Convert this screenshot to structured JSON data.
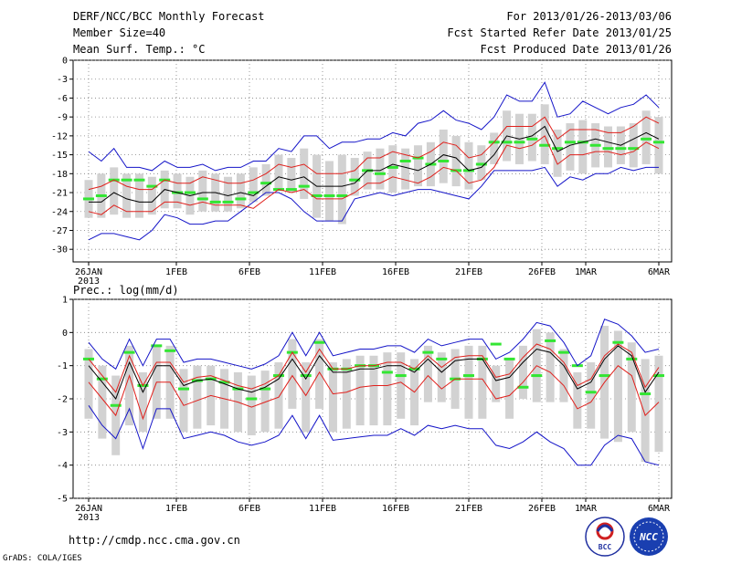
{
  "header": {
    "title": "DERF/NCC/BCC Monthly Forecast",
    "member_size": "Member Size=40",
    "forecast_period": "For 2013/01/26-2013/03/06",
    "started_refer": "Fcst Started Refer Date 2013/01/25",
    "produced": "Fcst Produced Date 2013/01/26"
  },
  "footer": {
    "url": "http://cmdp.ncc.cma.gov.cn",
    "grads": "GrADS: COLA/IGES",
    "logo_bcc_text": "BCC",
    "logo_ncc_text": "NCC"
  },
  "colors": {
    "ensemble_mean": "#000000",
    "inner_band": "#e0201c",
    "outer_band": "#1414c8",
    "box": "#d2d2d2",
    "climatology_marker": "#33e633"
  },
  "chart_data": [
    {
      "type": "line",
      "title": "Mean Surf. Temp.: °C",
      "ylim": [
        -32,
        0
      ],
      "yticks": [
        0,
        -3,
        -6,
        -9,
        -12,
        -15,
        -18,
        -21,
        -24,
        -27,
        -30
      ],
      "xtick_labels": [
        "26JAN",
        "1FEB",
        "6FEB",
        "11FEB",
        "16FEB",
        "21FEB",
        "26FEB",
        "1MAR",
        "6MAR"
      ],
      "xtick_days": [
        0,
        6,
        11,
        16,
        21,
        26,
        31,
        34,
        39
      ],
      "year_label": "2013",
      "series": [
        {
          "name": "ensemble mean",
          "values": [
            -22.5,
            -22.5,
            -21.0,
            -22.0,
            -22.5,
            -22.5,
            -20.5,
            -21.0,
            -21.5,
            -21.0,
            -21.0,
            -21.5,
            -21.0,
            -21.5,
            -20.0,
            -18.5,
            -19.0,
            -18.5,
            -20.0,
            -20.0,
            -20.0,
            -19.5,
            -17.5,
            -17.5,
            -16.5,
            -17.0,
            -17.5,
            -16.5,
            -15.0,
            -15.5,
            -17.5,
            -17.0,
            -15.0,
            -12.0,
            -12.5,
            -12.0,
            -10.5,
            -14.5,
            -13.5,
            -13.0,
            -12.5,
            -13.0,
            -13.5,
            -12.5,
            -11.5,
            -12.5
          ]
        },
        {
          "name": "upper inner",
          "values": [
            -20.5,
            -20.0,
            -19.0,
            -20.0,
            -20.5,
            -20.5,
            -19.0,
            -19.5,
            -19.5,
            -18.5,
            -19.0,
            -19.5,
            -19.5,
            -19.0,
            -18.0,
            -16.5,
            -17.0,
            -16.5,
            -18.0,
            -18.0,
            -18.0,
            -17.5,
            -15.5,
            -15.5,
            -14.5,
            -15.0,
            -15.5,
            -14.5,
            -13.0,
            -13.5,
            -15.5,
            -15.0,
            -13.0,
            -10.5,
            -10.5,
            -10.5,
            -9.0,
            -12.5,
            -11.0,
            -11.0,
            -11.0,
            -11.5,
            -11.5,
            -10.5,
            -9.0,
            -10.0
          ]
        },
        {
          "name": "lower inner",
          "values": [
            -24.0,
            -24.5,
            -23.0,
            -24.0,
            -24.0,
            -24.0,
            -22.5,
            -22.5,
            -23.0,
            -22.5,
            -23.0,
            -23.0,
            -23.0,
            -23.5,
            -22.0,
            -20.5,
            -21.0,
            -20.5,
            -22.0,
            -22.0,
            -22.0,
            -21.0,
            -19.5,
            -19.5,
            -18.5,
            -19.0,
            -19.5,
            -18.5,
            -17.0,
            -17.5,
            -19.5,
            -19.0,
            -17.0,
            -13.5,
            -14.0,
            -13.5,
            -12.0,
            -16.5,
            -15.0,
            -15.0,
            -14.5,
            -14.5,
            -15.0,
            -14.5,
            -13.0,
            -14.0
          ]
        },
        {
          "name": "upper outer",
          "values": [
            -14.5,
            -16.0,
            -14.0,
            -17.0,
            -17.0,
            -17.5,
            -16.0,
            -17.0,
            -17.0,
            -16.5,
            -17.5,
            -17.0,
            -17.0,
            -16.0,
            -16.0,
            -14.0,
            -14.5,
            -12.0,
            -12.0,
            -14.0,
            -13.0,
            -13.0,
            -12.5,
            -12.5,
            -11.5,
            -12.0,
            -10.0,
            -9.5,
            -8.0,
            -9.5,
            -10.0,
            -11.0,
            -9.0,
            -5.5,
            -6.5,
            -6.5,
            -3.5,
            -9.0,
            -8.5,
            -6.5,
            -7.5,
            -8.5,
            -7.5,
            -7.0,
            -5.5,
            -7.5
          ]
        },
        {
          "name": "lower outer",
          "values": [
            -28.5,
            -27.5,
            -27.5,
            -28.0,
            -28.5,
            -27.0,
            -24.5,
            -25.0,
            -26.0,
            -26.0,
            -25.5,
            -25.5,
            -24.0,
            -22.5,
            -21.0,
            -21.0,
            -22.0,
            -24.0,
            -25.5,
            -25.5,
            -25.5,
            -22.0,
            -21.5,
            -21.0,
            -21.5,
            -21.0,
            -20.5,
            -20.5,
            -21.0,
            -21.5,
            -22.0,
            -20.0,
            -17.5,
            -17.5,
            -17.5,
            -17.5,
            -17.0,
            -20.0,
            -18.5,
            -19.0,
            -18.0,
            -18.0,
            -17.0,
            -17.5,
            -17.0,
            -17.0
          ]
        },
        {
          "name": "climatology",
          "values": [
            -22.0,
            -21.5,
            -19.0,
            -19.0,
            -19.0,
            -20.0,
            -19.0,
            -21.0,
            -21.0,
            -22.0,
            -22.5,
            -22.5,
            -22.0,
            -21.0,
            -19.5,
            -20.5,
            -20.5,
            -20.0,
            -21.5,
            -21.5,
            -21.5,
            -19.0,
            -17.5,
            -18.0,
            -17.0,
            -16.0,
            -15.5,
            -16.5,
            -16.0,
            -17.5,
            -17.5,
            -16.5,
            -13.0,
            -13.0,
            -13.0,
            -12.5,
            -13.5,
            -14.0,
            -13.0,
            -13.0,
            -13.5,
            -14.0,
            -14.0,
            -14.0,
            -12.5,
            -13.0
          ]
        },
        {
          "name": "box top",
          "values": [
            -19.0,
            -18.0,
            -17.0,
            -18.0,
            -18.0,
            -18.5,
            -17.5,
            -18.0,
            -18.5,
            -17.5,
            -18.0,
            -18.5,
            -18.0,
            -17.0,
            -16.5,
            -15.0,
            -15.5,
            -14.0,
            -15.0,
            -16.0,
            -15.0,
            -15.5,
            -14.5,
            -14.0,
            -13.5,
            -14.0,
            -13.5,
            -13.0,
            -11.0,
            -12.0,
            -13.0,
            -13.5,
            -11.5,
            -8.0,
            -8.5,
            -8.5,
            -7.0,
            -11.0,
            -10.0,
            -9.5,
            -10.0,
            -10.5,
            -10.5,
            -10.0,
            -8.0,
            -9.0
          ]
        },
        {
          "name": "box bottom",
          "values": [
            -25.0,
            -25.0,
            -24.5,
            -25.0,
            -25.0,
            -24.5,
            -23.5,
            -23.5,
            -24.5,
            -24.0,
            -24.0,
            -24.0,
            -23.5,
            -22.5,
            -21.5,
            -20.5,
            -21.0,
            -22.0,
            -25.0,
            -25.5,
            -26.0,
            -21.5,
            -20.5,
            -20.5,
            -21.0,
            -20.5,
            -20.0,
            -20.0,
            -19.5,
            -20.0,
            -20.5,
            -19.0,
            -16.5,
            -16.0,
            -16.5,
            -16.0,
            -16.5,
            -18.5,
            -17.5,
            -18.0,
            -17.0,
            -17.0,
            -16.5,
            -17.0,
            -16.5,
            -18.0
          ]
        }
      ]
    },
    {
      "type": "line",
      "title": "Prec.: log(mm/d)",
      "ylim": [
        -5,
        1
      ],
      "yticks": [
        1,
        0,
        -1,
        -2,
        -3,
        -4,
        -5
      ],
      "xtick_labels": [
        "26JAN",
        "1FEB",
        "6FEB",
        "11FEB",
        "16FEB",
        "21FEB",
        "26FEB",
        "1MAR",
        "6MAR"
      ],
      "xtick_days": [
        0,
        6,
        11,
        16,
        21,
        26,
        31,
        34,
        39
      ],
      "year_label": "2013",
      "series": [
        {
          "name": "ensemble mean",
          "values": [
            -1.0,
            -1.5,
            -2.0,
            -0.9,
            -1.8,
            -1.0,
            -1.0,
            -1.6,
            -1.45,
            -1.4,
            -1.55,
            -1.7,
            -1.8,
            -1.65,
            -1.4,
            -0.8,
            -1.4,
            -0.7,
            -1.2,
            -1.2,
            -1.1,
            -1.1,
            -1.0,
            -1.0,
            -1.2,
            -0.8,
            -1.2,
            -0.85,
            -0.8,
            -0.8,
            -1.45,
            -1.35,
            -0.9,
            -0.5,
            -0.6,
            -1.0,
            -1.7,
            -1.5,
            -0.8,
            -0.4,
            -0.7,
            -1.8,
            -1.2
          ]
        },
        {
          "name": "upper inner",
          "values": [
            -0.8,
            -1.3,
            -1.8,
            -0.7,
            -1.6,
            -0.9,
            -0.9,
            -1.5,
            -1.35,
            -1.3,
            -1.45,
            -1.6,
            -1.7,
            -1.55,
            -1.3,
            -0.6,
            -1.2,
            -0.5,
            -1.1,
            -1.1,
            -1.0,
            -1.0,
            -0.9,
            -0.9,
            -1.1,
            -0.7,
            -1.05,
            -0.75,
            -0.7,
            -0.7,
            -1.35,
            -1.25,
            -0.75,
            -0.35,
            -0.5,
            -0.9,
            -1.6,
            -1.4,
            -0.7,
            -0.35,
            -0.6,
            -1.65,
            -1.05
          ]
        },
        {
          "name": "lower inner",
          "values": [
            -1.5,
            -2.0,
            -2.5,
            -1.3,
            -2.6,
            -1.5,
            -1.5,
            -2.2,
            -2.05,
            -1.9,
            -2.0,
            -2.1,
            -2.25,
            -2.1,
            -1.95,
            -1.3,
            -1.9,
            -1.2,
            -1.85,
            -1.8,
            -1.65,
            -1.6,
            -1.6,
            -1.5,
            -1.8,
            -1.3,
            -1.7,
            -1.4,
            -1.4,
            -1.4,
            -2.0,
            -1.9,
            -1.5,
            -1.0,
            -1.2,
            -1.6,
            -2.3,
            -2.1,
            -1.5,
            -1.0,
            -1.3,
            -2.5,
            -2.1
          ]
        },
        {
          "name": "upper outer",
          "values": [
            -0.3,
            -0.8,
            -1.1,
            -0.2,
            -1.0,
            -0.2,
            -0.2,
            -0.9,
            -0.8,
            -0.8,
            -0.9,
            -1.0,
            -1.1,
            -0.95,
            -0.7,
            0.0,
            -0.7,
            0.0,
            -0.7,
            -0.6,
            -0.5,
            -0.5,
            -0.4,
            -0.4,
            -0.6,
            -0.2,
            -0.4,
            -0.3,
            -0.2,
            -0.2,
            -0.8,
            -0.6,
            -0.2,
            0.3,
            0.2,
            -0.3,
            -1.0,
            -0.7,
            0.4,
            0.25,
            -0.1,
            -0.6,
            -0.5
          ]
        },
        {
          "name": "lower outer",
          "values": [
            -2.2,
            -2.8,
            -3.2,
            -2.3,
            -3.5,
            -2.3,
            -2.3,
            -3.2,
            -3.1,
            -3.0,
            -3.1,
            -3.3,
            -3.4,
            -3.3,
            -3.1,
            -2.5,
            -3.2,
            -2.5,
            -3.25,
            -3.2,
            -3.15,
            -3.1,
            -3.1,
            -2.9,
            -3.1,
            -2.8,
            -2.9,
            -2.8,
            -2.9,
            -2.9,
            -3.4,
            -3.5,
            -3.3,
            -3.0,
            -3.3,
            -3.5,
            -4.0,
            -4.0,
            -3.4,
            -3.1,
            -3.2,
            -3.9,
            -4.0
          ]
        },
        {
          "name": "climatology",
          "values": [
            -0.8,
            -1.4,
            -2.2,
            -0.6,
            -1.6,
            -0.4,
            -0.55,
            -1.7,
            -1.45,
            -1.4,
            -1.5,
            -1.7,
            -2.0,
            -1.7,
            -1.3,
            -0.6,
            -1.3,
            -0.3,
            -1.1,
            -1.1,
            -1.0,
            -1.0,
            -1.2,
            -1.3,
            -1.1,
            -0.6,
            -0.8,
            -1.4,
            -1.3,
            -0.8,
            -0.35,
            -0.8,
            -1.65,
            -1.3,
            -0.25,
            -0.6,
            -1.0,
            -1.8,
            -1.3,
            -0.3,
            -0.8,
            -1.85,
            -1.3
          ]
        },
        {
          "name": "box top",
          "values": [
            -0.5,
            -1.0,
            -1.3,
            -0.4,
            -1.2,
            -0.4,
            -0.4,
            -1.1,
            -1.0,
            -1.0,
            -1.1,
            -1.2,
            -1.3,
            -1.15,
            -0.9,
            -0.2,
            -0.9,
            -0.2,
            -0.9,
            -0.8,
            -0.7,
            -0.7,
            -0.6,
            -0.6,
            -0.8,
            -0.4,
            -0.6,
            -0.5,
            -0.4,
            -0.4,
            -1.0,
            -0.8,
            -0.4,
            0.1,
            0.0,
            -0.5,
            -1.2,
            -0.9,
            0.2,
            0.05,
            -0.3,
            -0.8,
            -0.7
          ]
        },
        {
          "name": "box bottom",
          "values": [
            -2.6,
            -3.2,
            -3.7,
            -2.8,
            -3.0,
            -2.6,
            -2.6,
            -3.0,
            -2.9,
            -2.8,
            -2.9,
            -3.0,
            -3.1,
            -3.0,
            -2.9,
            -2.3,
            -3.0,
            -2.3,
            -3.0,
            -2.9,
            -2.8,
            -2.8,
            -2.8,
            -2.6,
            -2.8,
            -2.1,
            -2.1,
            -2.3,
            -2.6,
            -2.6,
            -2.1,
            -2.6,
            -2.0,
            -2.1,
            -2.1,
            -2.1,
            -2.9,
            -2.9,
            -3.2,
            -3.3,
            -3.0,
            -3.9,
            -3.6
          ]
        }
      ]
    }
  ]
}
